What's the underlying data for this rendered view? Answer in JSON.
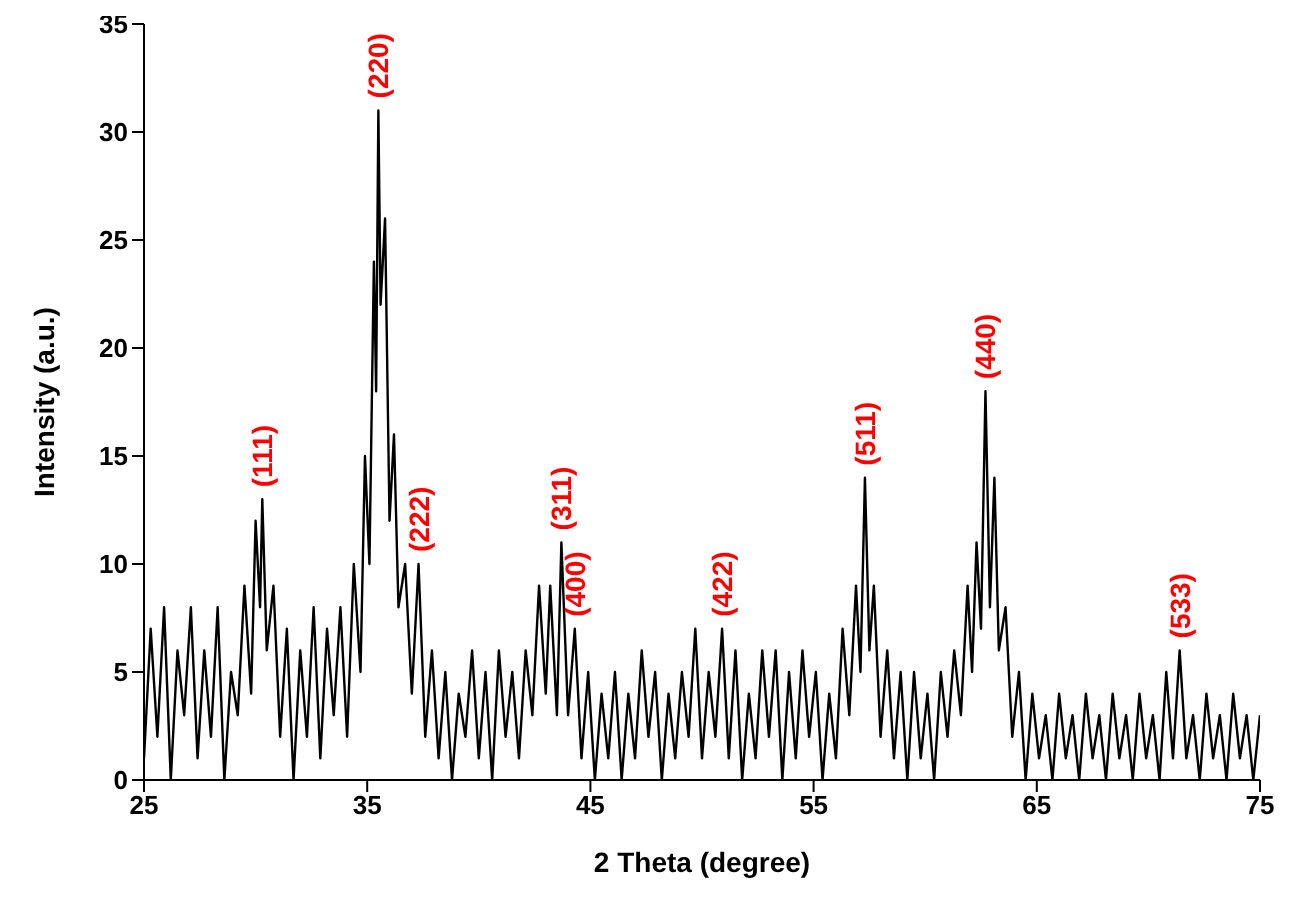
{
  "chart_data": {
    "type": "line",
    "xlabel": "2 Theta (degree)",
    "ylabel": "Intensity (a.u.)",
    "xlim": [
      25,
      75
    ],
    "xticks": [
      25,
      35,
      45,
      55,
      65,
      75
    ],
    "ylim": [
      0,
      35
    ],
    "yticks": [
      0,
      5,
      10,
      15,
      20,
      25,
      30,
      35
    ],
    "grid": false,
    "legend": false,
    "marker": "none",
    "line_style": "solid",
    "x": [
      25,
      25.3,
      25.6,
      25.9,
      26.2,
      26.5,
      26.8,
      27.1,
      27.4,
      27.7,
      28,
      28.3,
      28.6,
      28.9,
      29.2,
      29.5,
      29.8,
      30,
      30.2,
      30.3,
      30.5,
      30.8,
      31.1,
      31.4,
      31.7,
      32,
      32.3,
      32.6,
      32.9,
      33.2,
      33.5,
      33.8,
      34.1,
      34.4,
      34.7,
      34.9,
      35.1,
      35.3,
      35.4,
      35.5,
      35.6,
      35.8,
      36,
      36.2,
      36.4,
      36.7,
      37,
      37.3,
      37.6,
      37.9,
      38.2,
      38.5,
      38.8,
      39.1,
      39.4,
      39.7,
      40,
      40.3,
      40.6,
      40.9,
      41.2,
      41.5,
      41.8,
      42.1,
      42.4,
      42.7,
      43,
      43.2,
      43.5,
      43.7,
      44,
      44.3,
      44.6,
      44.9,
      45.2,
      45.5,
      45.8,
      46.1,
      46.4,
      46.7,
      47,
      47.3,
      47.6,
      47.9,
      48.2,
      48.5,
      48.8,
      49.1,
      49.4,
      49.7,
      50,
      50.3,
      50.6,
      50.9,
      51.2,
      51.5,
      51.8,
      52.1,
      52.4,
      52.7,
      53,
      53.3,
      53.6,
      53.9,
      54.2,
      54.5,
      54.8,
      55.1,
      55.4,
      55.7,
      56,
      56.3,
      56.6,
      56.9,
      57.1,
      57.3,
      57.5,
      57.7,
      58,
      58.3,
      58.6,
      58.9,
      59.2,
      59.5,
      59.8,
      60.1,
      60.4,
      60.7,
      61,
      61.3,
      61.6,
      61.9,
      62.1,
      62.3,
      62.5,
      62.7,
      62.9,
      63.1,
      63.3,
      63.6,
      63.9,
      64.2,
      64.5,
      64.8,
      65.1,
      65.4,
      65.7,
      66,
      66.3,
      66.6,
      66.9,
      67.2,
      67.5,
      67.8,
      68.1,
      68.4,
      68.7,
      69,
      69.3,
      69.6,
      69.9,
      70.2,
      70.5,
      70.8,
      71.1,
      71.4,
      71.7,
      72,
      72.3,
      72.6,
      72.9,
      73.2,
      73.5,
      73.8,
      74.1,
      74.4,
      74.7,
      75
    ],
    "series": [
      {
        "color": "#000000",
        "values": [
          1,
          7,
          2,
          8,
          0,
          6,
          3,
          8,
          1,
          6,
          2,
          8,
          0,
          5,
          3,
          9,
          4,
          12,
          8,
          13,
          6,
          9,
          2,
          7,
          0,
          6,
          2,
          8,
          1,
          7,
          3,
          8,
          2,
          10,
          5,
          15,
          10,
          24,
          18,
          31,
          22,
          26,
          12,
          16,
          8,
          10,
          4,
          10,
          2,
          6,
          1,
          5,
          0,
          4,
          2,
          6,
          1,
          5,
          0,
          6,
          2,
          5,
          1,
          6,
          3,
          9,
          4,
          9,
          3,
          11,
          3,
          7,
          1,
          5,
          0,
          4,
          1,
          5,
          0,
          4,
          1,
          6,
          2,
          5,
          0,
          4,
          1,
          5,
          2,
          7,
          1,
          5,
          2,
          7,
          1,
          6,
          0,
          4,
          1,
          6,
          2,
          6,
          0,
          5,
          1,
          6,
          2,
          5,
          0,
          4,
          1,
          7,
          3,
          9,
          5,
          14,
          6,
          9,
          2,
          6,
          1,
          5,
          0,
          5,
          1,
          4,
          0,
          5,
          2,
          6,
          3,
          9,
          5,
          11,
          7,
          18,
          8,
          14,
          6,
          8,
          2,
          5,
          0,
          4,
          1,
          3,
          0,
          4,
          1,
          3,
          0,
          4,
          1,
          3,
          0,
          4,
          1,
          3,
          0,
          4,
          1,
          3,
          0,
          5,
          1,
          6,
          1,
          3,
          0,
          4,
          1,
          3,
          0,
          4,
          1,
          3,
          0,
          3
        ]
      }
    ],
    "annotations": [
      {
        "text": "(111)",
        "x": 30.3,
        "y": 13
      },
      {
        "text": "(220)",
        "x": 35.5,
        "y": 31
      },
      {
        "text": "(222)",
        "x": 37.3,
        "y": 10
      },
      {
        "text": "(311)",
        "x": 43.7,
        "y": 11
      },
      {
        "text": "(400)",
        "x": 44.3,
        "y": 7
      },
      {
        "text": "(422)",
        "x": 50.9,
        "y": 7
      },
      {
        "text": "(511)",
        "x": 57.3,
        "y": 14
      },
      {
        "text": "(440)",
        "x": 62.7,
        "y": 18
      },
      {
        "text": "(533)",
        "x": 71.4,
        "y": 6
      }
    ]
  }
}
